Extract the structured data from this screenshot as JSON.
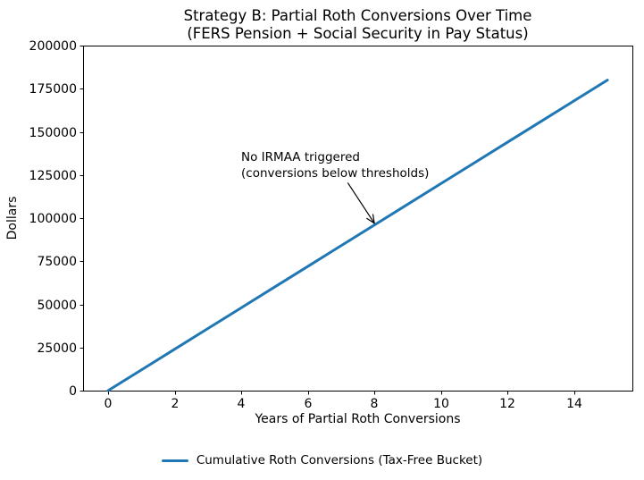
{
  "chart_data": {
    "type": "line",
    "title_lines": [
      "Strategy B: Partial Roth Conversions Over Time",
      "(FERS Pension + Social Security in Pay Status)"
    ],
    "xlabel": "Years of Partial Roth Conversions",
    "ylabel": "Dollars",
    "xlim": [
      -0.75,
      15.75
    ],
    "ylim": [
      0,
      200000
    ],
    "xticks": [
      0,
      2,
      4,
      6,
      8,
      10,
      12,
      14
    ],
    "yticks": [
      0,
      25000,
      50000,
      75000,
      100000,
      125000,
      150000,
      175000,
      200000
    ],
    "grid": false,
    "background_color": "#ffffff",
    "axes_color": "#000000",
    "series": [
      {
        "name": "Cumulative Roth Conversions (Tax-Free Bucket)",
        "color": "#1f77b4",
        "line_width": 3,
        "x": [
          0,
          1,
          2,
          3,
          4,
          5,
          6,
          7,
          8,
          9,
          10,
          11,
          12,
          13,
          14,
          15
        ],
        "y": [
          0,
          12000,
          24000,
          36000,
          48000,
          60000,
          72000,
          84000,
          96000,
          108000,
          120000,
          132000,
          144000,
          156000,
          168000,
          180000
        ]
      }
    ],
    "annotation": {
      "lines": [
        "No IRMAA triggered",
        "(conversions below thresholds)"
      ],
      "text_xy": [
        4,
        140000
      ],
      "arrow_from": [
        7.2,
        120500
      ],
      "arrow_to": [
        8,
        97000
      ]
    },
    "legend_position": "lower center outside"
  },
  "legend": {
    "label": "Cumulative Roth Conversions (Tax-Free Bucket)"
  }
}
